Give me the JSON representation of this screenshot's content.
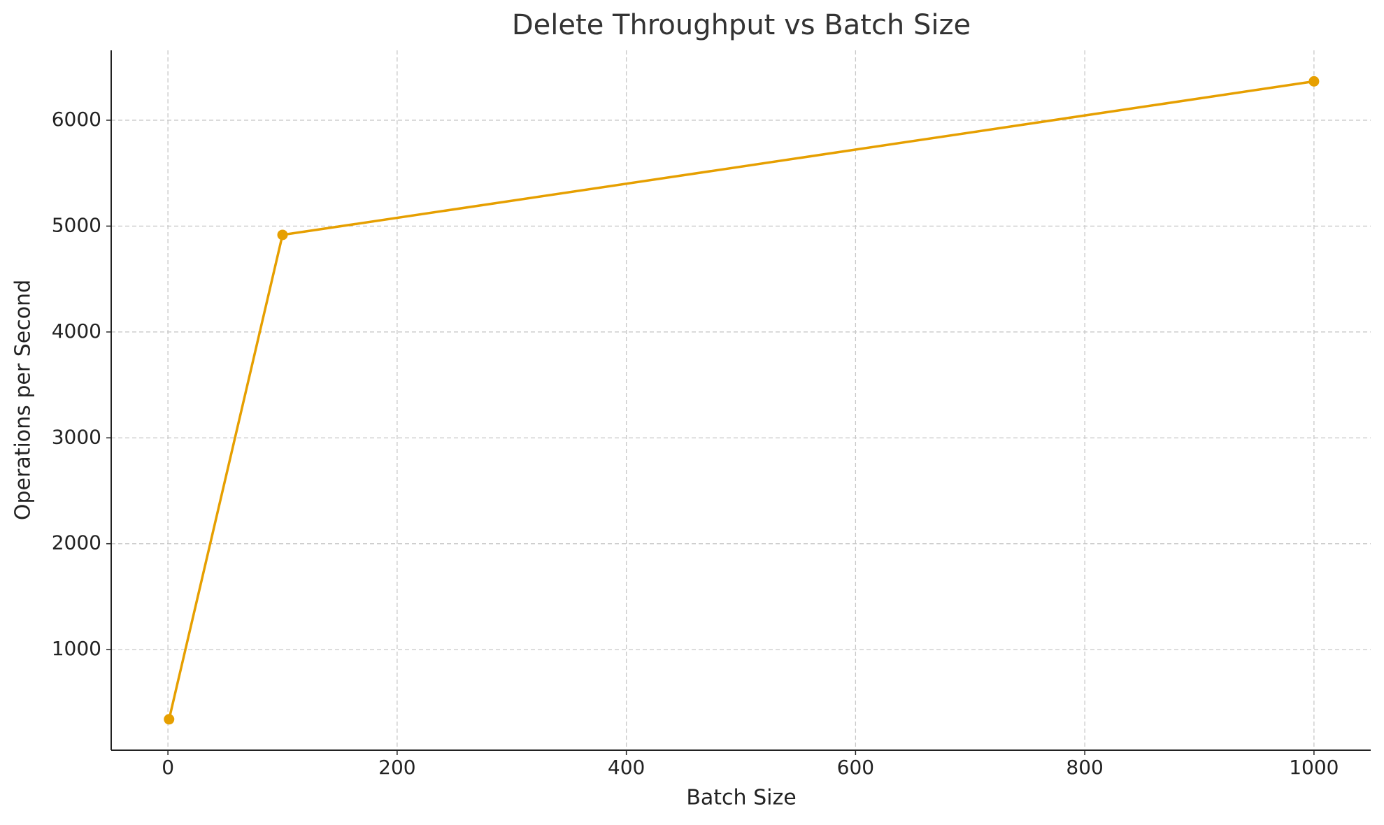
{
  "chart_data": {
    "type": "line",
    "title": "Delete Throughput vs Batch Size",
    "x_label": "Batch Size",
    "y_label": "Operations per Second",
    "x": [
      1,
      100,
      1000
    ],
    "values": [
      342,
      4917,
      6367
    ],
    "color": "#e69f00",
    "xlim": [
      -49.5,
      1049.5
    ],
    "xticks": [
      0,
      200,
      400,
      600,
      800,
      1000
    ],
    "ylim": [
      50,
      6660
    ],
    "yticks": [
      1000,
      2000,
      3000,
      4000,
      5000,
      6000
    ],
    "grid": true
  }
}
